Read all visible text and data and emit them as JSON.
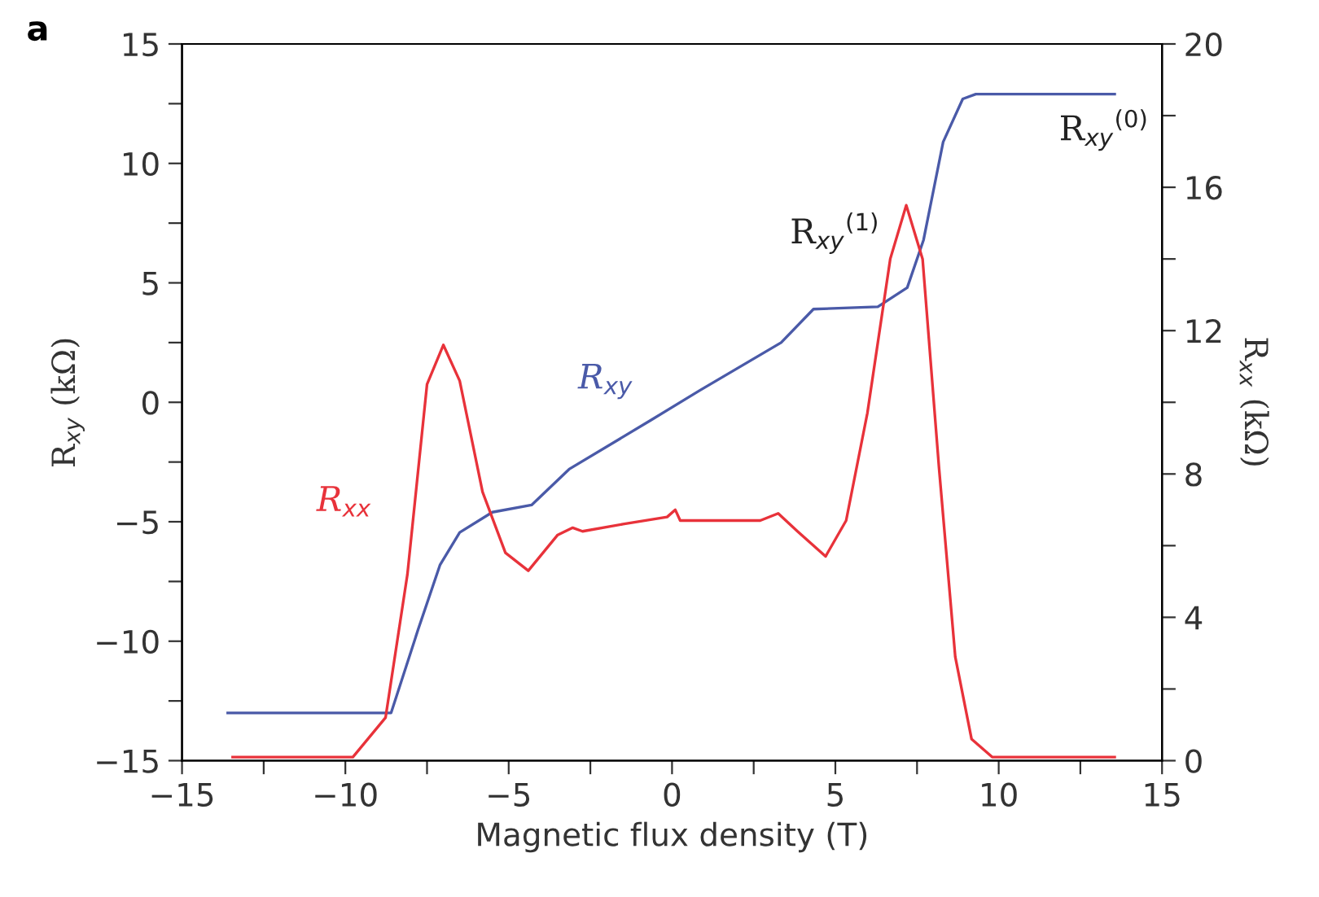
{
  "chart_data": {
    "type": "line",
    "xlabel": "Magnetic flux density (T)",
    "ylabel": "R$_{xy}$ (kΩ)",
    "y2label": "R$_{xx}$ (kΩ)",
    "xlim": [
      -15,
      15
    ],
    "xticks": [
      -15,
      {
        "value": -12.5,
        "label": null
      },
      -10,
      {
        "value": -7.5,
        "label": null
      },
      -5,
      {
        "value": -2.5,
        "label": null
      },
      0,
      {
        "value": 2.5,
        "label": null
      },
      5,
      {
        "value": 7.5,
        "label": null
      },
      10,
      {
        "value": 12.5,
        "label": null
      },
      15
    ],
    "ylim": [
      -15,
      15
    ],
    "yticks": [
      -15,
      {
        "value": -12.5,
        "label": null
      },
      -10,
      {
        "value": -7.5,
        "label": null
      },
      -5,
      {
        "value": -2.5,
        "label": null
      },
      0,
      {
        "value": 2.5,
        "label": null
      },
      5,
      {
        "value": 7.5,
        "label": null
      },
      10,
      {
        "value": 12.5,
        "label": null
      },
      15
    ],
    "y2lim": [
      0,
      20
    ],
    "y2ticks": [
      0,
      {
        "value": 2,
        "label": null
      },
      4,
      {
        "value": 6,
        "label": null
      },
      8,
      {
        "value": 10,
        "label": null
      },
      12,
      {
        "value": 14,
        "label": null
      },
      16,
      {
        "value": 18,
        "label": null
      },
      20
    ],
    "grid": false,
    "legend": false,
    "marker": "none",
    "line_style": "solid",
    "series": [
      {
        "name": "R$_{xy}$",
        "color": "#4a5aa8",
        "x": [
          -13.6,
          -8.6,
          -7.77,
          -7.1,
          -6.5,
          -5.5,
          -4.3,
          -3.15,
          -0.65,
          0.85,
          3.34,
          4.33,
          6.3,
          7.2,
          7.7,
          8.3,
          8.9,
          9.3,
          13.55
        ],
        "values": [
          -13.0,
          -13.0,
          -9.5,
          -6.8,
          -5.45,
          -4.6,
          -4.3,
          -2.8,
          -0.75,
          0.5,
          2.5,
          3.9,
          4.0,
          4.8,
          6.8,
          10.9,
          12.7,
          12.9,
          12.9
        ]
      },
      {
        "name": "R$_{xx}$",
        "color": "#e8323a",
        "axis": "y2",
        "x": [
          -13.45,
          -9.77,
          -8.77,
          -8.1,
          -7.5,
          -7.0,
          -6.5,
          -5.8,
          -5.1,
          -4.4,
          -3.5,
          -3.04,
          -2.74,
          -1.5,
          -0.15,
          0.1,
          0.25,
          2.7,
          3.25,
          3.84,
          4.7,
          5.33,
          5.98,
          6.68,
          7.17,
          7.67,
          8.17,
          8.67,
          9.17,
          9.8,
          13.55
        ],
        "values": [
          0.1,
          0.1,
          1.2,
          5.2,
          10.5,
          11.6,
          10.6,
          7.5,
          5.8,
          5.3,
          6.3,
          6.5,
          6.4,
          6.6,
          6.8,
          7.0,
          6.7,
          6.7,
          6.9,
          6.4,
          5.7,
          6.7,
          9.7,
          14.0,
          15.5,
          14.0,
          8.2,
          2.9,
          0.6,
          0.1,
          0.1
        ]
      }
    ],
    "annotations": [
      "a",
      "R$_{xy}$$^{(1)}$",
      "R$_{xy}$$^{(0)}$"
    ]
  }
}
